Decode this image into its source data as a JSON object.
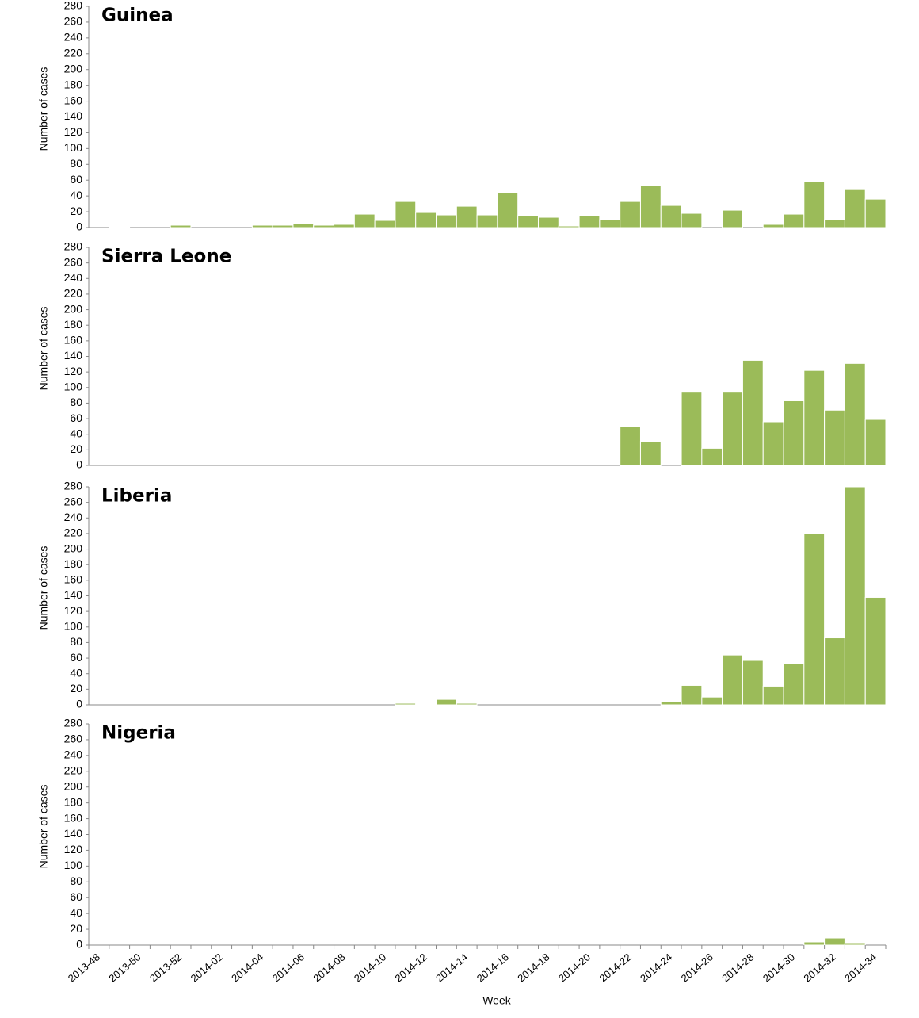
{
  "chart_data": [
    {
      "type": "bar",
      "title": "Guinea",
      "ylabel": "Number of cases",
      "color": "#9bbb59",
      "values": [
        0,
        1,
        0,
        0,
        3,
        0,
        0,
        0,
        3,
        3,
        5,
        3,
        4,
        17,
        9,
        33,
        19,
        16,
        27,
        16,
        44,
        15,
        13,
        2,
        15,
        10,
        33,
        53,
        28,
        18,
        0,
        22,
        0,
        4,
        17,
        58,
        10,
        48,
        36
      ],
      "ylim": [
        0,
        280
      ],
      "yticks": [
        0,
        20,
        40,
        60,
        80,
        100,
        120,
        140,
        160,
        180,
        200,
        220,
        240,
        260,
        280
      ]
    },
    {
      "type": "bar",
      "title": "Sierra Leone",
      "ylabel": "Number of cases",
      "color": "#9bbb59",
      "values": [
        0,
        0,
        0,
        0,
        0,
        0,
        0,
        0,
        0,
        0,
        0,
        0,
        0,
        0,
        0,
        0,
        0,
        0,
        0,
        0,
        0,
        0,
        0,
        0,
        0,
        0,
        50,
        31,
        0,
        94,
        22,
        94,
        135,
        56,
        83,
        122,
        71,
        131,
        59
      ],
      "ylim": [
        0,
        280
      ],
      "yticks": [
        0,
        20,
        40,
        60,
        80,
        100,
        120,
        140,
        160,
        180,
        200,
        220,
        240,
        260,
        280
      ]
    },
    {
      "type": "bar",
      "title": "Liberia",
      "ylabel": "Number of cases",
      "color": "#9bbb59",
      "values": [
        0,
        0,
        0,
        0,
        0,
        0,
        0,
        0,
        0,
        0,
        0,
        0,
        0,
        0,
        0,
        2,
        1,
        7,
        2,
        0,
        0,
        0,
        0,
        0,
        0,
        0,
        0,
        0,
        4,
        25,
        10,
        64,
        57,
        24,
        53,
        220,
        86,
        280,
        138
      ],
      "ylim": [
        0,
        280
      ],
      "yticks": [
        0,
        20,
        40,
        60,
        80,
        100,
        120,
        140,
        160,
        180,
        200,
        220,
        240,
        260,
        280
      ]
    },
    {
      "type": "bar",
      "title": "Nigeria",
      "ylabel": "Number of cases",
      "xlabel": "Week",
      "color": "#9bbb59",
      "categories": [
        "2013-48",
        null,
        "2013-50",
        null,
        "2013-52",
        null,
        "2014-02",
        null,
        "2014-04",
        null,
        "2014-06",
        null,
        "2014-08",
        null,
        "2014-10",
        null,
        "2014-12",
        null,
        "2014-14",
        null,
        "2014-16",
        null,
        "2014-18",
        null,
        "2014-20",
        null,
        "2014-22",
        null,
        "2014-24",
        null,
        "2014-26",
        null,
        "2014-28",
        null,
        "2014-30",
        null,
        "2014-32",
        null,
        "2014-34"
      ],
      "values": [
        0,
        0,
        0,
        0,
        0,
        0,
        0,
        0,
        0,
        0,
        0,
        0,
        0,
        0,
        0,
        0,
        0,
        0,
        0,
        0,
        0,
        0,
        0,
        0,
        0,
        0,
        0,
        0,
        0,
        0,
        0,
        0,
        0,
        0,
        0,
        4,
        9,
        2,
        0
      ],
      "ylim": [
        0,
        280
      ],
      "yticks": [
        0,
        20,
        40,
        60,
        80,
        100,
        120,
        140,
        160,
        180,
        200,
        220,
        240,
        260,
        280
      ]
    }
  ]
}
